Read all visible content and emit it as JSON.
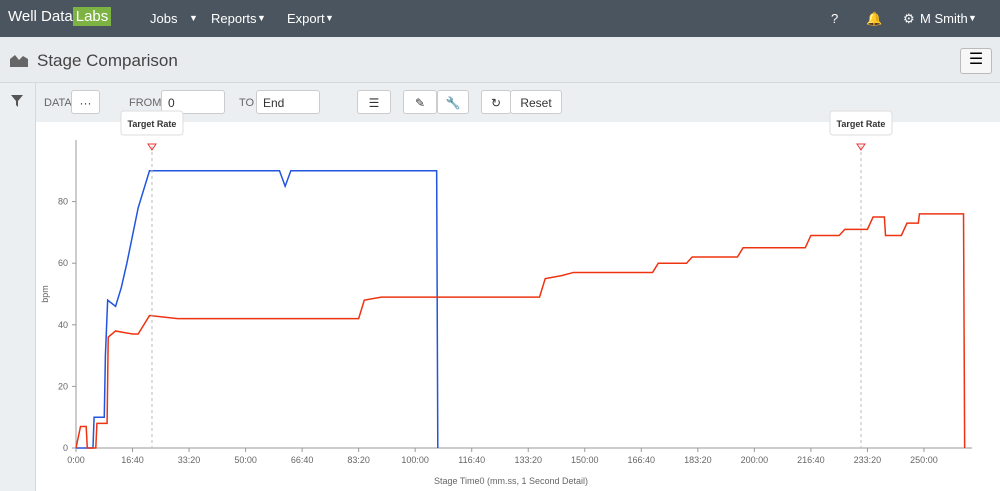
{
  "navbar": {
    "brand": "Well Data",
    "brand_box": "Labs",
    "menu": [
      "Jobs",
      "Reports",
      "Export"
    ],
    "user": "M Smith"
  },
  "header": {
    "title": "Stage Comparison"
  },
  "toolbar": {
    "data_label": "DATA",
    "data_button": "···",
    "from_label": "FROM",
    "from_value": "0",
    "to_label": "TO",
    "to_value": "End",
    "reset": "Reset"
  },
  "chart_data": {
    "type": "line",
    "ylabel": "bpm",
    "xlabel": "Stage Time0 (mm.ss, 1 Second Detail)",
    "xlim": [
      0,
      15850
    ],
    "ylim": [
      0,
      100
    ],
    "xticks": [
      {
        "value": 0,
        "label": "0:00"
      },
      {
        "value": 1000,
        "label": "16:40"
      },
      {
        "value": 2000,
        "label": "33:20"
      },
      {
        "value": 3000,
        "label": "50:00"
      },
      {
        "value": 4000,
        "label": "66:40"
      },
      {
        "value": 5000,
        "label": "83:20"
      },
      {
        "value": 6000,
        "label": "100:00"
      },
      {
        "value": 7000,
        "label": "116:40"
      },
      {
        "value": 8000,
        "label": "133:20"
      },
      {
        "value": 9000,
        "label": "150:00"
      },
      {
        "value": 10000,
        "label": "166:40"
      },
      {
        "value": 11000,
        "label": "183:20"
      },
      {
        "value": 12000,
        "label": "200:00"
      },
      {
        "value": 13000,
        "label": "216:40"
      },
      {
        "value": 14000,
        "label": "233:20"
      },
      {
        "value": 15000,
        "label": "250:00"
      }
    ],
    "yticks": [
      0,
      20,
      40,
      60,
      80
    ],
    "series": [
      {
        "color": "#2255dd",
        "x": [
          0,
          300,
          320,
          500,
          520,
          560,
          700,
          800,
          900,
          1100,
          1300,
          3600,
          3700,
          3800,
          6380,
          6400
        ],
        "values": [
          0,
          0,
          10,
          10,
          30,
          48,
          46,
          52,
          60,
          78,
          90,
          90,
          85,
          90,
          90,
          0
        ]
      },
      {
        "color": "#ee3311",
        "x": [
          0,
          80,
          180,
          200,
          350,
          370,
          550,
          570,
          700,
          1000,
          1100,
          1300,
          1800,
          5000,
          5100,
          5400,
          8200,
          8300,
          8600,
          8800,
          10200,
          10300,
          10800,
          10900,
          11700,
          11800,
          12900,
          13000,
          13500,
          13600,
          14000,
          14100,
          14300,
          14320,
          14600,
          14700,
          14900,
          14920,
          15700,
          15720
        ],
        "values": [
          0,
          7,
          7,
          0,
          0,
          8,
          8,
          36,
          38,
          37,
          37,
          43,
          42,
          42,
          48,
          49,
          49,
          55,
          56,
          57,
          57,
          60,
          60,
          62,
          62,
          65,
          65,
          69,
          69,
          71,
          71,
          75,
          75,
          69,
          69,
          73,
          73,
          76,
          76,
          0
        ]
      }
    ],
    "annotations": [
      {
        "text": "Target Rate",
        "x": 1344
      },
      {
        "text": "Target Rate",
        "x": 13886
      }
    ]
  }
}
